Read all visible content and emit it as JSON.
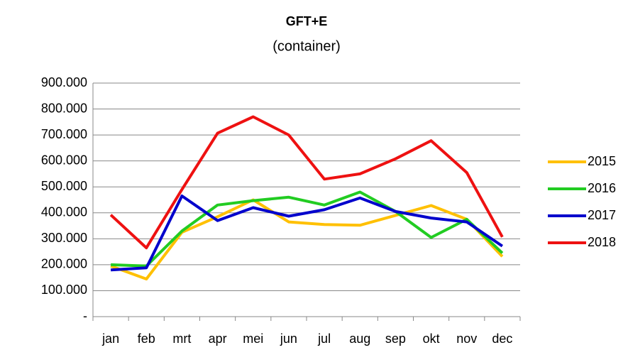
{
  "chart_data": {
    "type": "line",
    "title": "GFT+E",
    "subtitle": "(container)",
    "categories": [
      "jan",
      "feb",
      "mrt",
      "apr",
      "mei",
      "jun",
      "jul",
      "aug",
      "sep",
      "okt",
      "nov",
      "dec"
    ],
    "series": [
      {
        "name": "2015",
        "color": "#ffc000",
        "values": [
          195000,
          145000,
          325000,
          385000,
          450000,
          365000,
          355000,
          352000,
          390000,
          428000,
          375000,
          232000
        ]
      },
      {
        "name": "2016",
        "color": "#22cc22",
        "values": [
          200000,
          195000,
          330000,
          430000,
          447000,
          460000,
          430000,
          480000,
          405000,
          305000,
          375000,
          245000
        ]
      },
      {
        "name": "2017",
        "color": "#0000cc",
        "values": [
          180000,
          188000,
          465000,
          370000,
          420000,
          387000,
          412000,
          457000,
          405000,
          380000,
          365000,
          272000
        ]
      },
      {
        "name": "2018",
        "color": "#ee1111",
        "values": [
          392000,
          265000,
          490000,
          707000,
          770000,
          700000,
          530000,
          550000,
          608000,
          678000,
          555000,
          307000
        ]
      }
    ],
    "ylim": [
      0,
      900000
    ],
    "yticks": [
      {
        "value": 0,
        "label": "-"
      },
      {
        "value": 100000,
        "label": "100.000"
      },
      {
        "value": 200000,
        "label": "200.000"
      },
      {
        "value": 300000,
        "label": "300.000"
      },
      {
        "value": 400000,
        "label": "400.000"
      },
      {
        "value": 500000,
        "label": "500.000"
      },
      {
        "value": 600000,
        "label": "600.000"
      },
      {
        "value": 700000,
        "label": "700.000"
      },
      {
        "value": 800000,
        "label": "800.000"
      },
      {
        "value": 900000,
        "label": "900.000"
      }
    ],
    "grid": true,
    "legend": "right"
  }
}
